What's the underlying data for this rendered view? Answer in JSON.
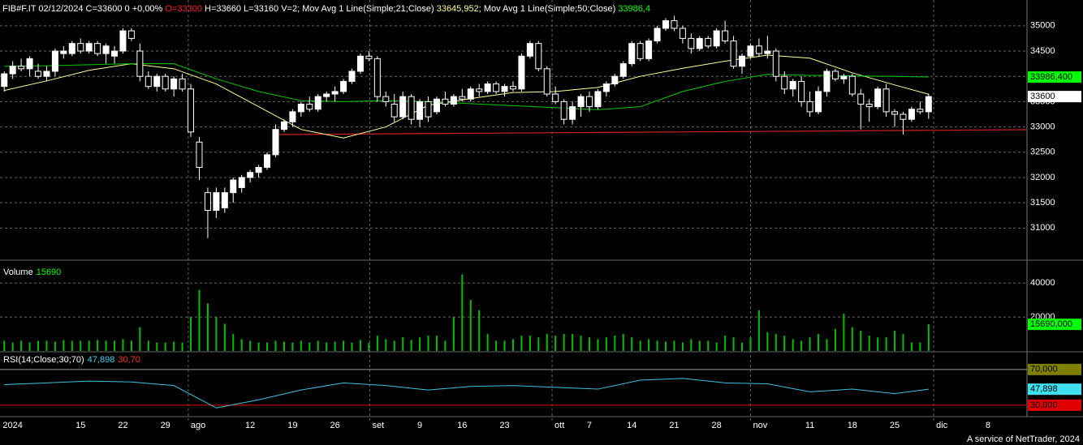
{
  "header": [
    {
      "text": "FIB#F.IT 02/12/2024 C=33600 0 +0,00% ",
      "color": "#ffffff"
    },
    {
      "text": "O=33300",
      "color": "#ff2020"
    },
    {
      "text": " H=33660 L=33160 V=2; Mov Avg 1 Line(Simple;21;Close) ",
      "color": "#ffffff"
    },
    {
      "text": "33645,952",
      "color": "#ffff99"
    },
    {
      "text": "; Mov Avg 1 Line(Simple;50;Close) ",
      "color": "#ffffff"
    },
    {
      "text": "33986,4",
      "color": "#00ff00"
    }
  ],
  "footer": "A service of NetTrader, 2024",
  "chart_data": [
    {
      "type": "candlestick",
      "up_color": "#ffffff",
      "down_color": "#000000",
      "wick_color": "#ffffff",
      "grid": true,
      "xlim": [
        -0.5,
        120.6
      ],
      "xticks": [
        {
          "value": 1,
          "label": "2024"
        },
        {
          "value": 9,
          "label": "15"
        },
        {
          "value": 14,
          "label": "22"
        },
        {
          "value": 19,
          "label": "29"
        },
        {
          "value": 29,
          "label": "12"
        },
        {
          "value": 34,
          "label": "19"
        },
        {
          "value": 39,
          "label": "26"
        },
        {
          "value": 49,
          "label": "9"
        },
        {
          "value": 54,
          "label": "16"
        },
        {
          "value": 59,
          "label": "23"
        },
        {
          "value": 69,
          "label": "7"
        },
        {
          "value": 74,
          "label": "14"
        },
        {
          "value": 79,
          "label": "21"
        },
        {
          "value": 84,
          "label": "28"
        },
        {
          "value": 95,
          "label": "11"
        },
        {
          "value": 100,
          "label": "18"
        },
        {
          "value": 105,
          "label": "25"
        },
        {
          "value": 116,
          "label": "8"
        }
      ],
      "xticks_major": [
        {
          "value": 21.7,
          "label": "ago"
        },
        {
          "value": 43.1,
          "label": "set"
        },
        {
          "value": 64.6,
          "label": "ott"
        },
        {
          "value": 88,
          "label": "nov"
        },
        {
          "value": 109.6,
          "label": "dic"
        }
      ],
      "ylim": [
        30380,
        35510
      ],
      "yticks": [
        31000,
        31500,
        32000,
        32500,
        33000,
        33500,
        34000,
        34500,
        35000
      ],
      "candles": [
        [
          33800,
          34100,
          33700,
          34050
        ],
        [
          34050,
          34300,
          33950,
          34200
        ],
        [
          34200,
          34350,
          34100,
          34150
        ],
        [
          34150,
          34400,
          34000,
          34350
        ],
        [
          34100,
          34250,
          33950,
          34000
        ],
        [
          34000,
          34200,
          33900,
          34100
        ],
        [
          34100,
          34550,
          34000,
          34500
        ],
        [
          34450,
          34600,
          34350,
          34500
        ],
        [
          34450,
          34700,
          34400,
          34650
        ],
        [
          34650,
          34750,
          34450,
          34500
        ],
        [
          34500,
          34700,
          34450,
          34650
        ],
        [
          34650,
          34700,
          34400,
          34450
        ],
        [
          34450,
          34650,
          34250,
          34600
        ],
        [
          34400,
          34600,
          34250,
          34500
        ],
        [
          34500,
          34950,
          34450,
          34900
        ],
        [
          34900,
          34950,
          34700,
          34750
        ],
        [
          34500,
          34650,
          33900,
          34000
        ],
        [
          34000,
          34100,
          33750,
          33800
        ],
        [
          33800,
          34050,
          33700,
          34000
        ],
        [
          34000,
          34050,
          33700,
          33750
        ],
        [
          33750,
          34000,
          33600,
          33950
        ],
        [
          33950,
          34050,
          33700,
          33750
        ],
        [
          33750,
          33850,
          32800,
          32900
        ],
        [
          32700,
          32800,
          31950,
          32200
        ],
        [
          31700,
          31800,
          30800,
          31350
        ],
        [
          31350,
          31800,
          31200,
          31700
        ],
        [
          31400,
          31800,
          31300,
          31700
        ],
        [
          31700,
          32000,
          31500,
          31950
        ],
        [
          31800,
          32050,
          31700,
          32000
        ],
        [
          32000,
          32150,
          31900,
          32100
        ],
        [
          32100,
          32250,
          32000,
          32200
        ],
        [
          32200,
          32500,
          32150,
          32450
        ],
        [
          32450,
          33050,
          32400,
          32950
        ],
        [
          32950,
          33150,
          32900,
          33100
        ],
        [
          33100,
          33350,
          33000,
          33300
        ],
        [
          33300,
          33500,
          33200,
          33450
        ],
        [
          33450,
          33600,
          33300,
          33350
        ],
        [
          33350,
          33650,
          33300,
          33600
        ],
        [
          33600,
          33700,
          33500,
          33650
        ],
        [
          33650,
          33800,
          33500,
          33700
        ],
        [
          33700,
          33950,
          33650,
          33900
        ],
        [
          33900,
          34150,
          33850,
          34100
        ],
        [
          34100,
          34450,
          34050,
          34400
        ],
        [
          34400,
          34500,
          34300,
          34350
        ],
        [
          34350,
          34400,
          33500,
          33600
        ],
        [
          33600,
          33700,
          33400,
          33500
        ],
        [
          33450,
          33650,
          33100,
          33200
        ],
        [
          33200,
          33700,
          33150,
          33600
        ],
        [
          33600,
          33650,
          33050,
          33150
        ],
        [
          33150,
          33550,
          33000,
          33500
        ],
        [
          33500,
          33600,
          33100,
          33200
        ],
        [
          33300,
          33600,
          33250,
          33550
        ],
        [
          33550,
          33700,
          33400,
          33450
        ],
        [
          33450,
          33650,
          33400,
          33600
        ],
        [
          33600,
          33750,
          33500,
          33550
        ],
        [
          33550,
          33800,
          33500,
          33750
        ],
        [
          33750,
          33850,
          33600,
          33700
        ],
        [
          33700,
          33900,
          33650,
          33850
        ],
        [
          33850,
          33900,
          33650,
          33700
        ],
        [
          33700,
          33850,
          33600,
          33800
        ],
        [
          33800,
          33900,
          33700,
          33750
        ],
        [
          33750,
          34450,
          33700,
          34400
        ],
        [
          34400,
          34700,
          34350,
          34650
        ],
        [
          34650,
          34700,
          34100,
          34150
        ],
        [
          34150,
          34200,
          33600,
          33650
        ],
        [
          33650,
          33800,
          33450,
          33500
        ],
        [
          33500,
          33550,
          33050,
          33150
        ],
        [
          33150,
          33500,
          33050,
          33400
        ],
        [
          33400,
          33650,
          33200,
          33600
        ],
        [
          33600,
          33700,
          33300,
          33400
        ],
        [
          33400,
          33750,
          33350,
          33700
        ],
        [
          33700,
          33900,
          33600,
          33850
        ],
        [
          33850,
          34050,
          33800,
          34000
        ],
        [
          34000,
          34300,
          33950,
          34250
        ],
        [
          34250,
          34700,
          34200,
          34650
        ],
        [
          34650,
          34700,
          34300,
          34350
        ],
        [
          34350,
          34750,
          34300,
          34700
        ],
        [
          34700,
          35000,
          34650,
          34950
        ],
        [
          34950,
          35150,
          34900,
          35100
        ],
        [
          35100,
          35200,
          34900,
          34950
        ],
        [
          34950,
          35000,
          34650,
          34750
        ],
        [
          34750,
          34850,
          34450,
          34550
        ],
        [
          34550,
          34800,
          34500,
          34750
        ],
        [
          34750,
          34800,
          34550,
          34600
        ],
        [
          34600,
          34950,
          34550,
          34900
        ],
        [
          34900,
          35100,
          34650,
          34700
        ],
        [
          34700,
          34800,
          34150,
          34200
        ],
        [
          34200,
          34450,
          34050,
          34400
        ],
        [
          34400,
          34650,
          34350,
          34600
        ],
        [
          34600,
          34750,
          34400,
          34450
        ],
        [
          34450,
          34800,
          34350,
          34500
        ],
        [
          34500,
          34550,
          33900,
          34000
        ],
        [
          34000,
          34100,
          33650,
          33750
        ],
        [
          33750,
          33950,
          33600,
          33900
        ],
        [
          33900,
          34000,
          33400,
          33500
        ],
        [
          33500,
          33700,
          33200,
          33300
        ],
        [
          33300,
          33800,
          33250,
          33700
        ],
        [
          33700,
          34150,
          33600,
          34100
        ],
        [
          34100,
          34150,
          33900,
          33950
        ],
        [
          33950,
          34050,
          33850,
          34000
        ],
        [
          34000,
          34050,
          33600,
          33650
        ],
        [
          33650,
          33750,
          32950,
          33450
        ],
        [
          33450,
          33550,
          33100,
          33400
        ],
        [
          33400,
          33800,
          33350,
          33750
        ],
        [
          33750,
          33850,
          33200,
          33300
        ],
        [
          33300,
          33350,
          33000,
          33250
        ],
        [
          33250,
          33300,
          32850,
          33150
        ],
        [
          33150,
          33400,
          33100,
          33350
        ],
        [
          33350,
          33500,
          33250,
          33300
        ],
        [
          33300,
          33660,
          33160,
          33600
        ]
      ],
      "moving_averages": [
        {
          "color": "#ffff99",
          "x": [
            0,
            5,
            10,
            15,
            20,
            25,
            30,
            35,
            40,
            45,
            50,
            55,
            60,
            65,
            70,
            75,
            80,
            85,
            90,
            95,
            100,
            105,
            109
          ],
          "values": [
            33720,
            33910,
            34120,
            34250,
            34150,
            33850,
            33400,
            32950,
            32780,
            33000,
            33430,
            33560,
            33680,
            33700,
            33780,
            34000,
            34160,
            34300,
            34420,
            34360,
            34070,
            33830,
            33645.952
          ]
        },
        {
          "color": "#00c800",
          "x": [
            0,
            5,
            10,
            15,
            20,
            25,
            30,
            35,
            40,
            45,
            50,
            55,
            60,
            65,
            70,
            75,
            80,
            85,
            90,
            95,
            100,
            105,
            109
          ],
          "values": [
            34200,
            34210,
            34230,
            34250,
            34250,
            33950,
            33700,
            33520,
            33500,
            33520,
            33500,
            33460,
            33420,
            33380,
            33340,
            33400,
            33700,
            33900,
            34040,
            34020,
            34010,
            34000,
            33986.4
          ]
        }
      ],
      "badges": [
        {
          "value": 33986.4,
          "label": "33986,400",
          "color": "#00ff00"
        },
        {
          "value": 33600,
          "label": "33600",
          "color": "#ffffff"
        }
      ]
    },
    {
      "type": "bar",
      "title": "Volume",
      "title_value": 15690,
      "color": "#00c000",
      "grid": true,
      "ylim": [
        0,
        53000
      ],
      "yticks": [
        20000,
        40000
      ],
      "values": [
        6000,
        5000,
        6000,
        5000,
        6000,
        6000,
        5500,
        6500,
        6000,
        6000,
        6000,
        6500,
        6000,
        6000,
        7000,
        6000,
        14000,
        6000,
        5000,
        5000,
        5500,
        5000,
        20000,
        36000,
        28000,
        20000,
        16000,
        10000,
        7000,
        6000,
        5000,
        5000,
        6000,
        5500,
        5000,
        6000,
        5000,
        6000,
        5000,
        5500,
        6000,
        5000,
        6500,
        5000,
        9000,
        7000,
        6000,
        8000,
        6500,
        8000,
        9000,
        9000,
        6000,
        20000,
        45000,
        30000,
        24000,
        10000,
        6000,
        6000,
        7000,
        9000,
        9000,
        8000,
        10000,
        9000,
        10000,
        10000,
        9000,
        8000,
        7000,
        8000,
        9000,
        10000,
        8000,
        6000,
        7000,
        6000,
        5500,
        6000,
        5000,
        7000,
        6000,
        6000,
        5000,
        9000,
        8000,
        5000,
        8000,
        24000,
        11000,
        10000,
        9000,
        7000,
        6000,
        8000,
        10000,
        7000,
        13000,
        22000,
        14000,
        12000,
        9000,
        8000,
        8000,
        12000,
        10000,
        5000,
        5000,
        15690
      ],
      "badges": [
        {
          "value": 15690,
          "label": "15690,000",
          "color": "#00ff00"
        }
      ]
    },
    {
      "type": "line",
      "title": [
        {
          "text": "RSI(14;Close;30;70)",
          "color": "#ffffff"
        },
        {
          "text": "47,898",
          "color": "#40d0f0"
        },
        {
          "text": "30,70",
          "color": "#ff3030"
        }
      ],
      "color": "#40c0e0",
      "ylim": [
        19,
        88
      ],
      "x": [
        0,
        5,
        10,
        15,
        20,
        25,
        30,
        35,
        40,
        45,
        50,
        55,
        60,
        65,
        70,
        75,
        80,
        85,
        90,
        95,
        100,
        105,
        109
      ],
      "values": [
        53,
        55,
        57,
        56,
        52,
        27,
        36,
        47,
        55,
        52,
        47,
        51,
        52,
        50,
        48,
        58,
        60,
        55,
        54,
        45,
        48,
        43,
        47.898
      ],
      "levels": [
        {
          "value": 70,
          "label": "70,000",
          "color": "#808000"
        },
        {
          "value": 30,
          "label": "30,000",
          "color": "#e00000"
        }
      ],
      "badges": [
        {
          "value": 47.898,
          "label": "47,898",
          "color": "#40e0f0"
        }
      ]
    }
  ]
}
